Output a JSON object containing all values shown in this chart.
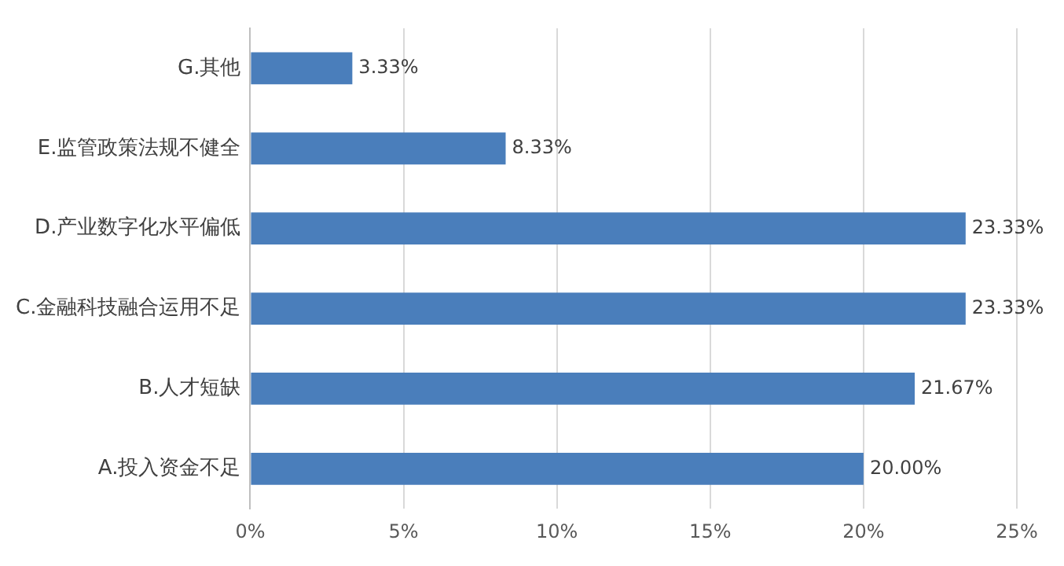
{
  "chart_data": {
    "type": "bar",
    "orientation": "horizontal",
    "categories": [
      "G.其他",
      "E.监管政策法规不健全",
      "D.产业数字化水平偏低",
      "C.金融科技融合运用不足",
      "B.人才短缺",
      "A.投入资金不足"
    ],
    "values": [
      3.33,
      8.33,
      23.33,
      23.33,
      21.67,
      20.0
    ],
    "value_labels": [
      "3.33%",
      "8.33%",
      "23.33%",
      "23.33%",
      "21.67%",
      "20.00%"
    ],
    "color": "#4a7ebb",
    "xlim": [
      0,
      25
    ],
    "xticks": [
      {
        "value": 0,
        "label": "0%"
      },
      {
        "value": 5,
        "label": "5%"
      },
      {
        "value": 10,
        "label": "10%"
      },
      {
        "value": 15,
        "label": "15%"
      },
      {
        "value": 20,
        "label": "20%"
      },
      {
        "value": 25,
        "label": "25%"
      }
    ],
    "grid": "x"
  }
}
